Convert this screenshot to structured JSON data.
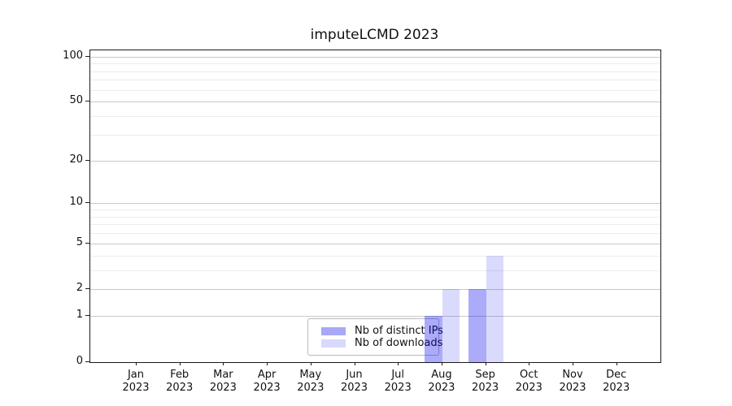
{
  "chart_data": {
    "type": "bar",
    "title": "imputeLCMD 2023",
    "x_categories": [
      "Jan",
      "Feb",
      "Mar",
      "Apr",
      "May",
      "Jun",
      "Jul",
      "Aug",
      "Sep",
      "Oct",
      "Nov",
      "Dec"
    ],
    "x_year": "2023",
    "series": [
      {
        "name": "Nb of distinct IPs",
        "color": "#a8a8f7",
        "fill": "rgba(10,10,240,0.34)",
        "values": [
          0,
          0,
          0,
          0,
          0,
          0,
          0,
          1,
          2,
          0,
          0,
          0
        ]
      },
      {
        "name": "Nb of downloads",
        "color": "#d9d9fb",
        "fill": "rgba(10,10,240,0.15)",
        "values": [
          0,
          0,
          0,
          0,
          0,
          0,
          0,
          2,
          4,
          0,
          0,
          0
        ]
      }
    ],
    "y_scale": "log1p",
    "y_max": 110,
    "y_major_ticks": [
      0,
      1,
      2,
      5,
      10,
      20,
      50,
      100
    ],
    "y_minor_ticks": [
      3,
      4,
      6,
      7,
      8,
      9,
      30,
      40,
      60,
      70,
      80,
      90
    ],
    "grid": "horizontal-only",
    "legend_position": "lower center"
  },
  "colors": {
    "grid_major": "#c9c9c9",
    "grid_minor": "#ededed",
    "spine": "#1a1a1a",
    "text": "#111111",
    "legend_border": "#b9b9b9",
    "background": "#ffffff"
  }
}
